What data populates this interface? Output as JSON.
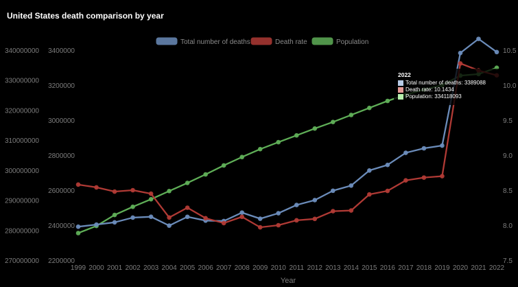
{
  "title": "United States death comparison by year",
  "tooltip": {
    "title": "2022",
    "rows": [
      {
        "text": "Total number of deaths: 3389088",
        "color": "#b7cbe6"
      },
      {
        "text": "Death rate: 10.1434",
        "color": "#e49a96"
      },
      {
        "text": "Population: 334118093",
        "color": "#b7f0ad"
      }
    ]
  },
  "chart_data": {
    "type": "line",
    "title": "United States death comparison by year",
    "xlabel": "Year",
    "x": [
      "1999",
      "2000",
      "2001",
      "2002",
      "2003",
      "2004",
      "2005",
      "2006",
      "2007",
      "2008",
      "2009",
      "2010",
      "2011",
      "2012",
      "2013",
      "2014",
      "2015",
      "2016",
      "2017",
      "2018",
      "2019",
      "2020",
      "2021",
      "2022"
    ],
    "legend_position": "top",
    "grid": false,
    "axes": {
      "population": {
        "side": "left-outer",
        "min": 270000000,
        "max": 340000000,
        "ticks": [
          270000000,
          280000000,
          290000000,
          300000000,
          310000000,
          320000000,
          330000000,
          340000000
        ]
      },
      "deaths": {
        "side": "left-inner",
        "min": 2200000,
        "max": 3400000,
        "ticks": [
          2200000,
          2400000,
          2600000,
          2800000,
          3000000,
          3200000,
          3400000
        ]
      },
      "rate": {
        "side": "right",
        "min": 7.5,
        "max": 10.5,
        "ticks": [
          7.5,
          8.0,
          8.5,
          9.0,
          9.5,
          10.0,
          10.5
        ]
      }
    },
    "series": [
      {
        "name": "Total number of deaths",
        "axis": "deaths",
        "color": "#6b8cba",
        "values": [
          2391399,
          2403351,
          2416425,
          2443387,
          2448288,
          2397615,
          2448017,
          2426264,
          2423712,
          2471984,
          2437163,
          2468435,
          2515458,
          2543279,
          2596993,
          2626418,
          2712630,
          2744248,
          2813503,
          2839205,
          2854838,
          3383729,
          3464231,
          3389088
        ]
      },
      {
        "name": "Death rate",
        "axis": "rate",
        "color": "#b03a35",
        "values": [
          8.58,
          8.54,
          8.48,
          8.5,
          8.45,
          8.11,
          8.25,
          8.1,
          8.03,
          8.12,
          7.97,
          8.0,
          8.07,
          8.09,
          8.2,
          8.21,
          8.44,
          8.49,
          8.64,
          8.68,
          8.7,
          10.31,
          10.21,
          10.14
        ]
      },
      {
        "name": "Population",
        "axis": "population",
        "color": "#5fae57",
        "values": [
          279040000,
          281422000,
          285082000,
          287804000,
          290326000,
          293046000,
          295753000,
          298593000,
          301580000,
          304375000,
          307007000,
          309327000,
          311583000,
          313878000,
          316060000,
          318386000,
          320739000,
          323072000,
          325122000,
          326838000,
          328330000,
          331511000,
          332031000,
          334118093
        ]
      }
    ]
  }
}
